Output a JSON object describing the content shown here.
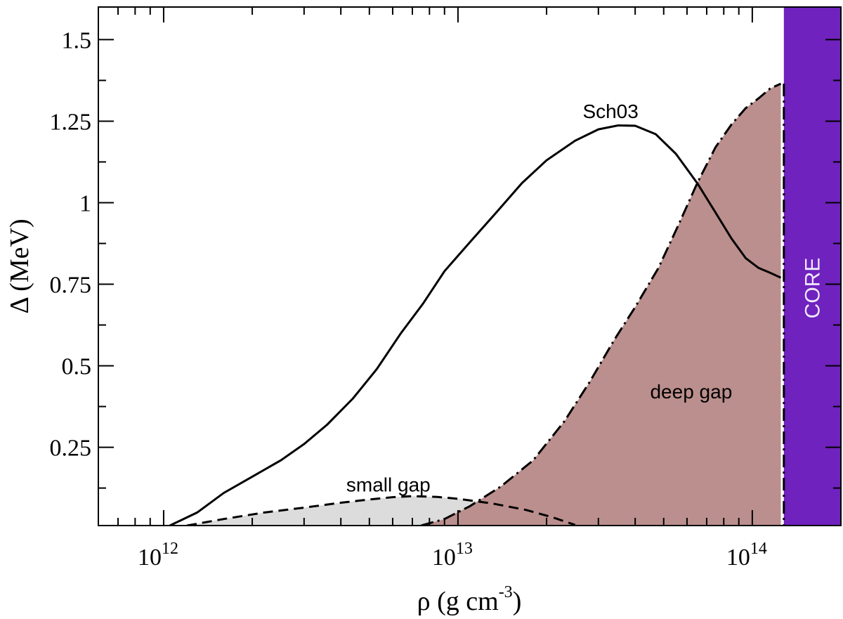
{
  "chart_data": {
    "type": "line",
    "x_scale": "log",
    "xlim": [
      600000000000.0,
      200000000000000.0
    ],
    "ylim": [
      0.01,
      1.6
    ],
    "xlabel": {
      "main": "ρ (g cm",
      "sup": "-3",
      "close": ")"
    },
    "ylabel": "Δ (MeV)",
    "x_tick_labels": [
      {
        "value": 1000000000000.0,
        "base": "10",
        "exp": "12"
      },
      {
        "value": 10000000000000.0,
        "base": "10",
        "exp": "13"
      },
      {
        "value": 100000000000000.0,
        "base": "10",
        "exp": "14"
      }
    ],
    "y_tick_labels": [
      {
        "value": 0.25,
        "label": "0.25"
      },
      {
        "value": 0.5,
        "label": "0.5"
      },
      {
        "value": 0.75,
        "label": "0.75"
      },
      {
        "value": 1.0,
        "label": "1"
      },
      {
        "value": 1.25,
        "label": "1.25"
      },
      {
        "value": 1.5,
        "label": "1.5"
      }
    ],
    "grid": false,
    "core_region": {
      "x_min": 128000000000000.0,
      "color": "#6f22bd",
      "label": "CORE"
    },
    "series": [
      {
        "label": "Sch03",
        "style": "solid",
        "points": [
          [
            1050000000000.0,
            0.01
          ],
          [
            1300000000000.0,
            0.05
          ],
          [
            1600000000000.0,
            0.11
          ],
          [
            2000000000000.0,
            0.16
          ],
          [
            2500000000000.0,
            0.21
          ],
          [
            3000000000000.0,
            0.26
          ],
          [
            3600000000000.0,
            0.32
          ],
          [
            4400000000000.0,
            0.4
          ],
          [
            5300000000000.0,
            0.49
          ],
          [
            6400000000000.0,
            0.6
          ],
          [
            7600000000000.0,
            0.69
          ],
          [
            9000000000000.0,
            0.79
          ],
          [
            11000000000000.0,
            0.88
          ],
          [
            13500000000000.0,
            0.97
          ],
          [
            16500000000000.0,
            1.06
          ],
          [
            20000000000000.0,
            1.13
          ],
          [
            25000000000000.0,
            1.19
          ],
          [
            30000000000000.0,
            1.225
          ],
          [
            35000000000000.0,
            1.237
          ],
          [
            40000000000000.0,
            1.236
          ],
          [
            47000000000000.0,
            1.21
          ],
          [
            55000000000000.0,
            1.15
          ],
          [
            65000000000000.0,
            1.06
          ],
          [
            75000000000000.0,
            0.97
          ],
          [
            85000000000000.0,
            0.89
          ],
          [
            95000000000000.0,
            0.83
          ],
          [
            105000000000000.0,
            0.8
          ],
          [
            115000000000000.0,
            0.785
          ],
          [
            125000000000000.0,
            0.77
          ]
        ]
      },
      {
        "label": "small gap",
        "style": "dashed",
        "fill": "#dcdcdc",
        "points": [
          [
            1200000000000.0,
            0.01
          ],
          [
            1600000000000.0,
            0.03
          ],
          [
            2200000000000.0,
            0.05
          ],
          [
            3000000000000.0,
            0.065
          ],
          [
            4000000000000.0,
            0.08
          ],
          [
            5000000000000.0,
            0.09
          ],
          [
            6000000000000.0,
            0.097
          ],
          [
            7000000000000.0,
            0.1
          ],
          [
            8500000000000.0,
            0.098
          ],
          [
            10000000000000.0,
            0.092
          ],
          [
            13000000000000.0,
            0.078
          ],
          [
            17000000000000.0,
            0.058
          ],
          [
            21000000000000.0,
            0.035
          ],
          [
            25000000000000.0,
            0.012
          ]
        ]
      },
      {
        "label": "deep gap",
        "style": "dashdot",
        "fill": "#bb8f8d",
        "points": [
          [
            7500000000000.0,
            0.01
          ],
          [
            9000000000000.0,
            0.03
          ],
          [
            11000000000000.0,
            0.07
          ],
          [
            14000000000000.0,
            0.13
          ],
          [
            18000000000000.0,
            0.21
          ],
          [
            23000000000000.0,
            0.33
          ],
          [
            28000000000000.0,
            0.45
          ],
          [
            34000000000000.0,
            0.58
          ],
          [
            40000000000000.0,
            0.68
          ],
          [
            48000000000000.0,
            0.8
          ],
          [
            56000000000000.0,
            0.93
          ],
          [
            65000000000000.0,
            1.06
          ],
          [
            75000000000000.0,
            1.17
          ],
          [
            85000000000000.0,
            1.24
          ],
          [
            95000000000000.0,
            1.29
          ],
          [
            105000000000000.0,
            1.32
          ],
          [
            115000000000000.0,
            1.35
          ],
          [
            125000000000000.0,
            1.365
          ]
        ]
      }
    ],
    "annotations": [
      {
        "text": "Sch03",
        "x": 33000000000000.0,
        "y": 1.26
      },
      {
        "text": "deep gap",
        "x": 62000000000000.0,
        "y": 0.4
      },
      {
        "text": "small gap",
        "x": 5800000000000.0,
        "y": 0.115
      }
    ]
  }
}
